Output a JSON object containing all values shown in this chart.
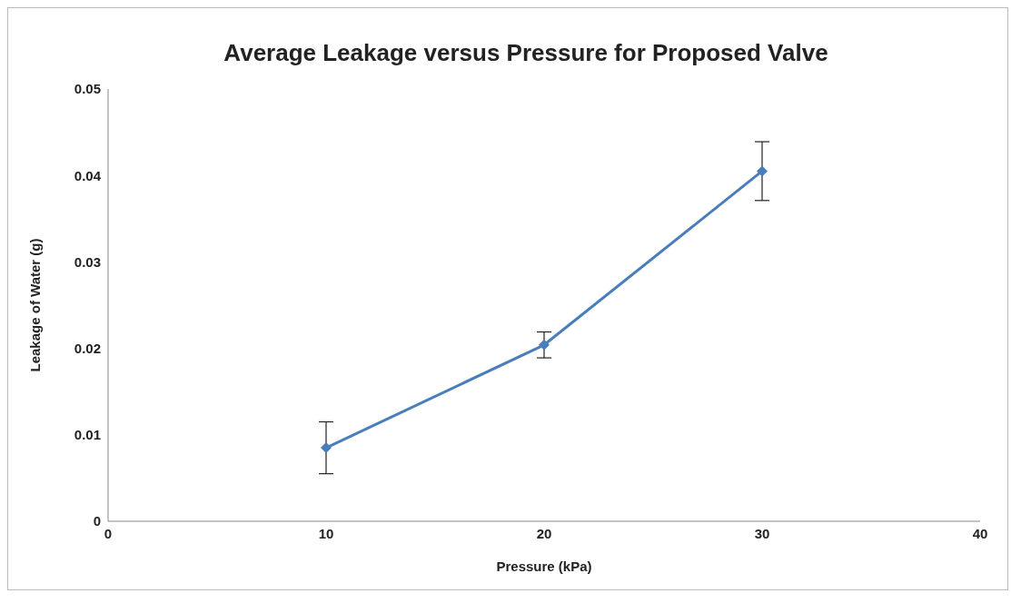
{
  "chart_data": {
    "type": "line",
    "title": "Average Leakage versus Pressure for Proposed Valve",
    "xlabel": "Pressure (kPa)",
    "ylabel": "Leakage of Water (g)",
    "x": [
      10,
      20,
      30
    ],
    "series": [
      {
        "color": "#4a7ebb",
        "values": [
          0.0085,
          0.0204,
          0.0405
        ],
        "errors": [
          0.003,
          0.0015,
          0.0034
        ]
      }
    ],
    "xlim": [
      0,
      40
    ],
    "xticks": [
      0,
      10,
      20,
      30,
      40
    ],
    "ylim": [
      0,
      0.05
    ],
    "yticks": [
      0,
      0.01,
      0.02,
      0.03,
      0.04,
      0.05
    ],
    "grid": false,
    "legend": false,
    "marker": "diamond",
    "line_style": "solid"
  }
}
